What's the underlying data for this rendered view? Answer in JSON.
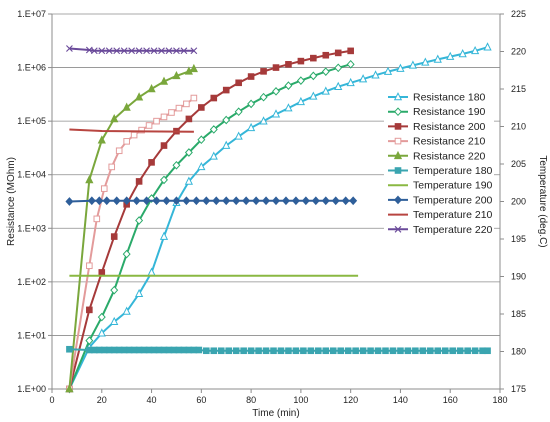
{
  "chart_data": {
    "type": "line",
    "xlabel": "Time (min)",
    "ylabel_left": "Resistance (MOhm)",
    "ylabel_right": "Temperature (deg.C)",
    "x_range": [
      0,
      180
    ],
    "x_ticks": [
      "0",
      "20",
      "40",
      "60",
      "80",
      "100",
      "120",
      "140",
      "160",
      "180"
    ],
    "y_left_scale": "log",
    "y_left_range": [
      1,
      10000000
    ],
    "y_left_ticks": [
      "1.E+00",
      "1.E+01",
      "1.E+02",
      "1.E+03",
      "1.E+04",
      "1.E+05",
      "1.E+06",
      "1.E+07"
    ],
    "y_right_range": [
      175,
      225
    ],
    "y_right_ticks": [
      "175",
      "180",
      "185",
      "190",
      "195",
      "200",
      "205",
      "210",
      "215",
      "220",
      "225"
    ],
    "grid": "horizontal",
    "legend_position": "right",
    "series": [
      {
        "name": "Resistance 180",
        "axis": "left",
        "color": "#35b6d8",
        "marker": "triangle-open",
        "x": [
          7,
          15,
          20,
          25,
          30,
          35,
          40,
          45,
          50,
          55,
          60,
          65,
          70,
          75,
          80,
          85,
          90,
          95,
          100,
          105,
          110,
          115,
          120,
          125,
          130,
          135,
          140,
          145,
          150,
          155,
          160,
          165,
          170,
          175
        ],
        "y": [
          1,
          6,
          11,
          18,
          28,
          60,
          150,
          700,
          3000,
          7500,
          14000,
          22000,
          35000,
          52000,
          75000,
          100000,
          135000,
          175000,
          230000,
          290000,
          360000,
          440000,
          520000,
          610000,
          720000,
          840000,
          960000,
          1100000,
          1250000,
          1420000,
          1600000,
          1800000,
          2050000,
          2400000
        ]
      },
      {
        "name": "Resistance 190",
        "axis": "left",
        "color": "#2aaa6a",
        "marker": "diamond-open",
        "x": [
          7,
          15,
          20,
          25,
          30,
          35,
          40,
          45,
          50,
          55,
          60,
          65,
          70,
          75,
          80,
          85,
          90,
          95,
          100,
          105,
          110,
          115,
          120
        ],
        "y": [
          1,
          8,
          22,
          70,
          330,
          1400,
          3600,
          8000,
          15000,
          26000,
          45000,
          70000,
          105000,
          150000,
          210000,
          280000,
          360000,
          460000,
          570000,
          700000,
          840000,
          990000,
          1150000
        ]
      },
      {
        "name": "Resistance 200",
        "axis": "left",
        "color": "#a63a3a",
        "marker": "square",
        "x": [
          7,
          15,
          20,
          25,
          30,
          35,
          40,
          45,
          50,
          55,
          60,
          65,
          70,
          75,
          80,
          85,
          90,
          95,
          100,
          105,
          110,
          115,
          120
        ],
        "y": [
          1,
          30,
          150,
          700,
          2800,
          7500,
          17000,
          35000,
          65000,
          110000,
          180000,
          270000,
          380000,
          520000,
          680000,
          850000,
          1000000,
          1150000,
          1320000,
          1500000,
          1700000,
          1880000,
          2050000
        ]
      },
      {
        "name": "Resistance 210",
        "axis": "left",
        "color": "#e39b9b",
        "marker": "square-open",
        "x": [
          7,
          15,
          18,
          21,
          24,
          27,
          30,
          33,
          36,
          39,
          42,
          45,
          48,
          51,
          54,
          57
        ],
        "y": [
          1,
          200,
          1500,
          5500,
          14000,
          28000,
          42000,
          55000,
          68000,
          83000,
          100000,
          120000,
          145000,
          175000,
          210000,
          270000
        ]
      },
      {
        "name": "Resistance 220",
        "axis": "left",
        "color": "#7aa73c",
        "marker": "triangle",
        "x": [
          7,
          15,
          20,
          25,
          30,
          35,
          40,
          45,
          50,
          55,
          57
        ],
        "y": [
          1,
          8000,
          44000,
          110000,
          180000,
          280000,
          400000,
          550000,
          700000,
          850000,
          950000
        ]
      },
      {
        "name": "Temperature 180",
        "axis": "right",
        "color": "#3aa5b0",
        "marker": "square",
        "x": [
          7,
          15,
          17,
          19,
          21,
          23,
          25,
          27,
          29,
          31,
          33,
          35,
          37,
          39,
          41,
          43,
          45,
          47,
          49,
          51,
          53,
          55,
          57,
          59,
          62,
          65,
          68,
          71,
          74,
          77,
          80,
          83,
          86,
          89,
          92,
          95,
          98,
          101,
          104,
          107,
          110,
          113,
          116,
          119,
          122,
          125,
          128,
          131,
          134,
          137,
          140,
          143,
          146,
          149,
          152,
          155,
          158,
          161,
          164,
          167,
          170,
          173,
          175
        ],
        "y": [
          180.3,
          180.2,
          180.2,
          180.2,
          180.2,
          180.2,
          180.2,
          180.2,
          180.2,
          180.2,
          180.2,
          180.2,
          180.2,
          180.2,
          180.2,
          180.2,
          180.2,
          180.2,
          180.2,
          180.2,
          180.2,
          180.2,
          180.2,
          180.2,
          180.1,
          180.1,
          180.1,
          180.1,
          180.1,
          180.1,
          180.1,
          180.1,
          180.1,
          180.1,
          180.1,
          180.1,
          180.1,
          180.1,
          180.1,
          180.1,
          180.1,
          180.1,
          180.1,
          180.1,
          180.1,
          180.1,
          180.1,
          180.1,
          180.1,
          180.1,
          180.1,
          180.1,
          180.1,
          180.1,
          180.1,
          180.1,
          180.1,
          180.1,
          180.1,
          180.1,
          180.1,
          180.1,
          180.1
        ]
      },
      {
        "name": "Temperature 190",
        "axis": "right",
        "color": "#8ab842",
        "marker": "none",
        "x": [
          7,
          123
        ],
        "y": [
          190.1,
          190.1
        ]
      },
      {
        "name": "Temperature 200",
        "axis": "right",
        "color": "#2f5f9a",
        "marker": "diamond",
        "x": [
          7,
          16,
          19,
          22,
          26,
          30,
          34,
          38,
          42,
          46,
          50,
          54,
          58,
          62,
          66,
          70,
          74,
          78,
          82,
          86,
          90,
          94,
          98,
          102,
          106,
          110,
          114,
          118,
          121
        ],
        "y": [
          200.0,
          200.1,
          200.1,
          200.1,
          200.1,
          200.1,
          200.1,
          200.1,
          200.1,
          200.1,
          200.1,
          200.1,
          200.1,
          200.1,
          200.1,
          200.1,
          200.1,
          200.1,
          200.1,
          200.1,
          200.1,
          200.1,
          200.1,
          200.1,
          200.1,
          200.1,
          200.1,
          200.1,
          200.1
        ]
      },
      {
        "name": "Temperature 210",
        "axis": "right",
        "color": "#b84540",
        "marker": "none",
        "x": [
          7,
          20,
          57
        ],
        "y": [
          209.6,
          209.4,
          209.3
        ]
      },
      {
        "name": "Temperature 220",
        "axis": "right",
        "color": "#6a4a9a",
        "marker": "x",
        "x": [
          7,
          15,
          17,
          20,
          23,
          26,
          29,
          32,
          35,
          38,
          41,
          44,
          47,
          50,
          53,
          57
        ],
        "y": [
          220.4,
          220.2,
          220.1,
          220.1,
          220.1,
          220.1,
          220.1,
          220.1,
          220.1,
          220.1,
          220.1,
          220.1,
          220.1,
          220.1,
          220.1,
          220.1
        ]
      }
    ]
  }
}
